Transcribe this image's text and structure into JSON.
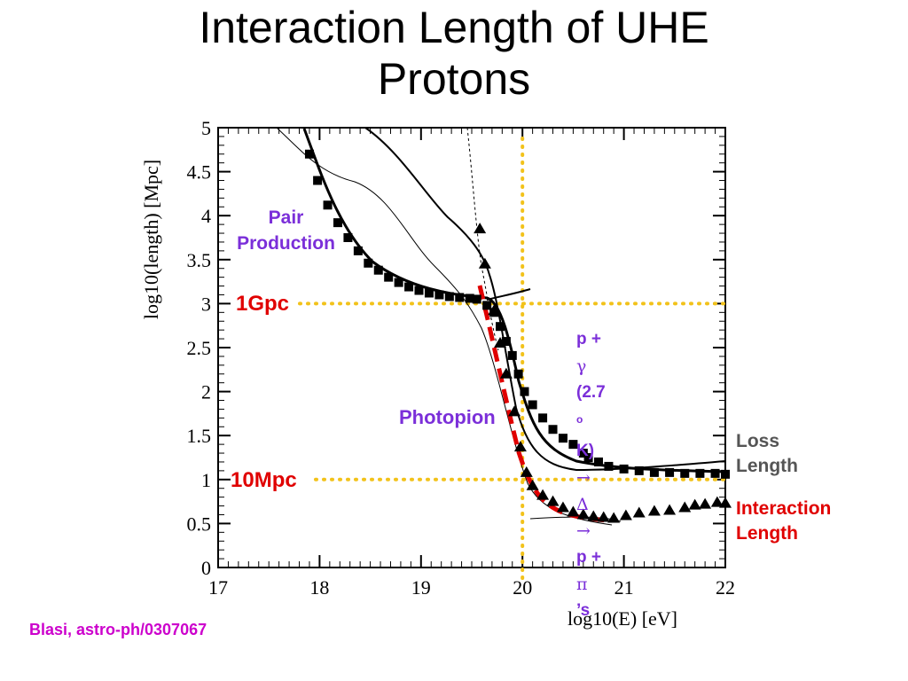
{
  "slide": {
    "title_line1": "Interaction Length of UHE",
    "title_line2": "Protons",
    "citation": "Blasi, astro-ph/0307067"
  },
  "colors": {
    "annotation_purple": "#7B2FD9",
    "annotation_red": "#E00000",
    "annotation_gray": "#555555",
    "citation_magenta": "#CC00CC",
    "guide_dotted_yellow": "#F2C21A",
    "fit_dashed_red": "#E00000"
  },
  "annotations": {
    "pair_line1": "Pair",
    "pair_line2": "Production",
    "gpc": "1Gpc",
    "mpc": "10Mpc",
    "photopion": "Photopion",
    "reaction_line1_pre": "p + ",
    "reaction_line1_gamma": "γ",
    "reaction_line1_post": " (2.7",
    "reaction_line1_sup": "o",
    "reaction_line1_end": "K)",
    "reaction_line2_arrow": "→",
    "reaction_line2_delta": " Δ",
    "reaction_line3_arrow": "→",
    "reaction_line3_text": " p + ",
    "reaction_line3_pi": "π",
    "reaction_line3_end": "’s",
    "loss_line1": "Loss",
    "loss_line2": "Length",
    "interaction_line1": "Interaction",
    "interaction_line2": "Length"
  },
  "chart_data": {
    "type": "line",
    "xlabel": "log10(E) [eV]",
    "ylabel": "log10(length) [Mpc]",
    "xlim": [
      17,
      22
    ],
    "ylim": [
      0,
      5
    ],
    "x_ticks": [
      "17",
      "18",
      "19",
      "20",
      "21",
      "22"
    ],
    "y_ticks": [
      "0",
      "0.5",
      "1",
      "1.5",
      "2",
      "2.5",
      "3",
      "3.5",
      "4",
      "4.5",
      "5"
    ],
    "grid": false,
    "reference_lines": [
      {
        "orientation": "horizontal",
        "y": 3.0,
        "label": "1Gpc"
      },
      {
        "orientation": "horizontal",
        "y": 1.0,
        "label": "10Mpc"
      },
      {
        "orientation": "vertical",
        "x": 20.0
      }
    ],
    "series": [
      {
        "name": "Loss Length",
        "style": "squares",
        "x": [
          17.9,
          17.98,
          18.08,
          18.18,
          18.28,
          18.38,
          18.48,
          18.58,
          18.68,
          18.78,
          18.88,
          18.98,
          19.08,
          19.18,
          19.28,
          19.38,
          19.48,
          19.55,
          19.65,
          19.72,
          19.78,
          19.84,
          19.9,
          19.96,
          20.02,
          20.1,
          20.2,
          20.3,
          20.4,
          20.5,
          20.6,
          20.65,
          20.75,
          20.85,
          21.0,
          21.15,
          21.3,
          21.45,
          21.6,
          21.75,
          21.9,
          22.0
        ],
        "y": [
          4.7,
          4.4,
          4.12,
          3.92,
          3.75,
          3.6,
          3.46,
          3.38,
          3.3,
          3.24,
          3.19,
          3.15,
          3.12,
          3.1,
          3.08,
          3.07,
          3.06,
          3.05,
          2.98,
          2.9,
          2.74,
          2.57,
          2.41,
          2.2,
          2.0,
          1.85,
          1.7,
          1.57,
          1.47,
          1.4,
          1.3,
          1.25,
          1.2,
          1.15,
          1.12,
          1.1,
          1.08,
          1.08,
          1.07,
          1.07,
          1.07,
          1.06
        ]
      },
      {
        "name": "Interaction Length",
        "style": "triangles",
        "x": [
          19.58,
          19.63,
          19.72,
          19.78,
          19.84,
          19.92,
          19.98,
          20.04,
          20.1,
          20.2,
          20.3,
          20.4,
          20.5,
          20.6,
          20.7,
          20.8,
          20.9,
          21.02,
          21.15,
          21.3,
          21.45,
          21.6,
          21.7,
          21.8,
          21.92,
          22.0
        ],
        "y": [
          3.85,
          3.45,
          2.92,
          2.55,
          2.2,
          1.77,
          1.37,
          1.08,
          0.93,
          0.82,
          0.75,
          0.68,
          0.63,
          0.6,
          0.58,
          0.57,
          0.56,
          0.59,
          0.62,
          0.64,
          0.65,
          0.68,
          0.71,
          0.72,
          0.74,
          0.73
        ]
      }
    ]
  }
}
